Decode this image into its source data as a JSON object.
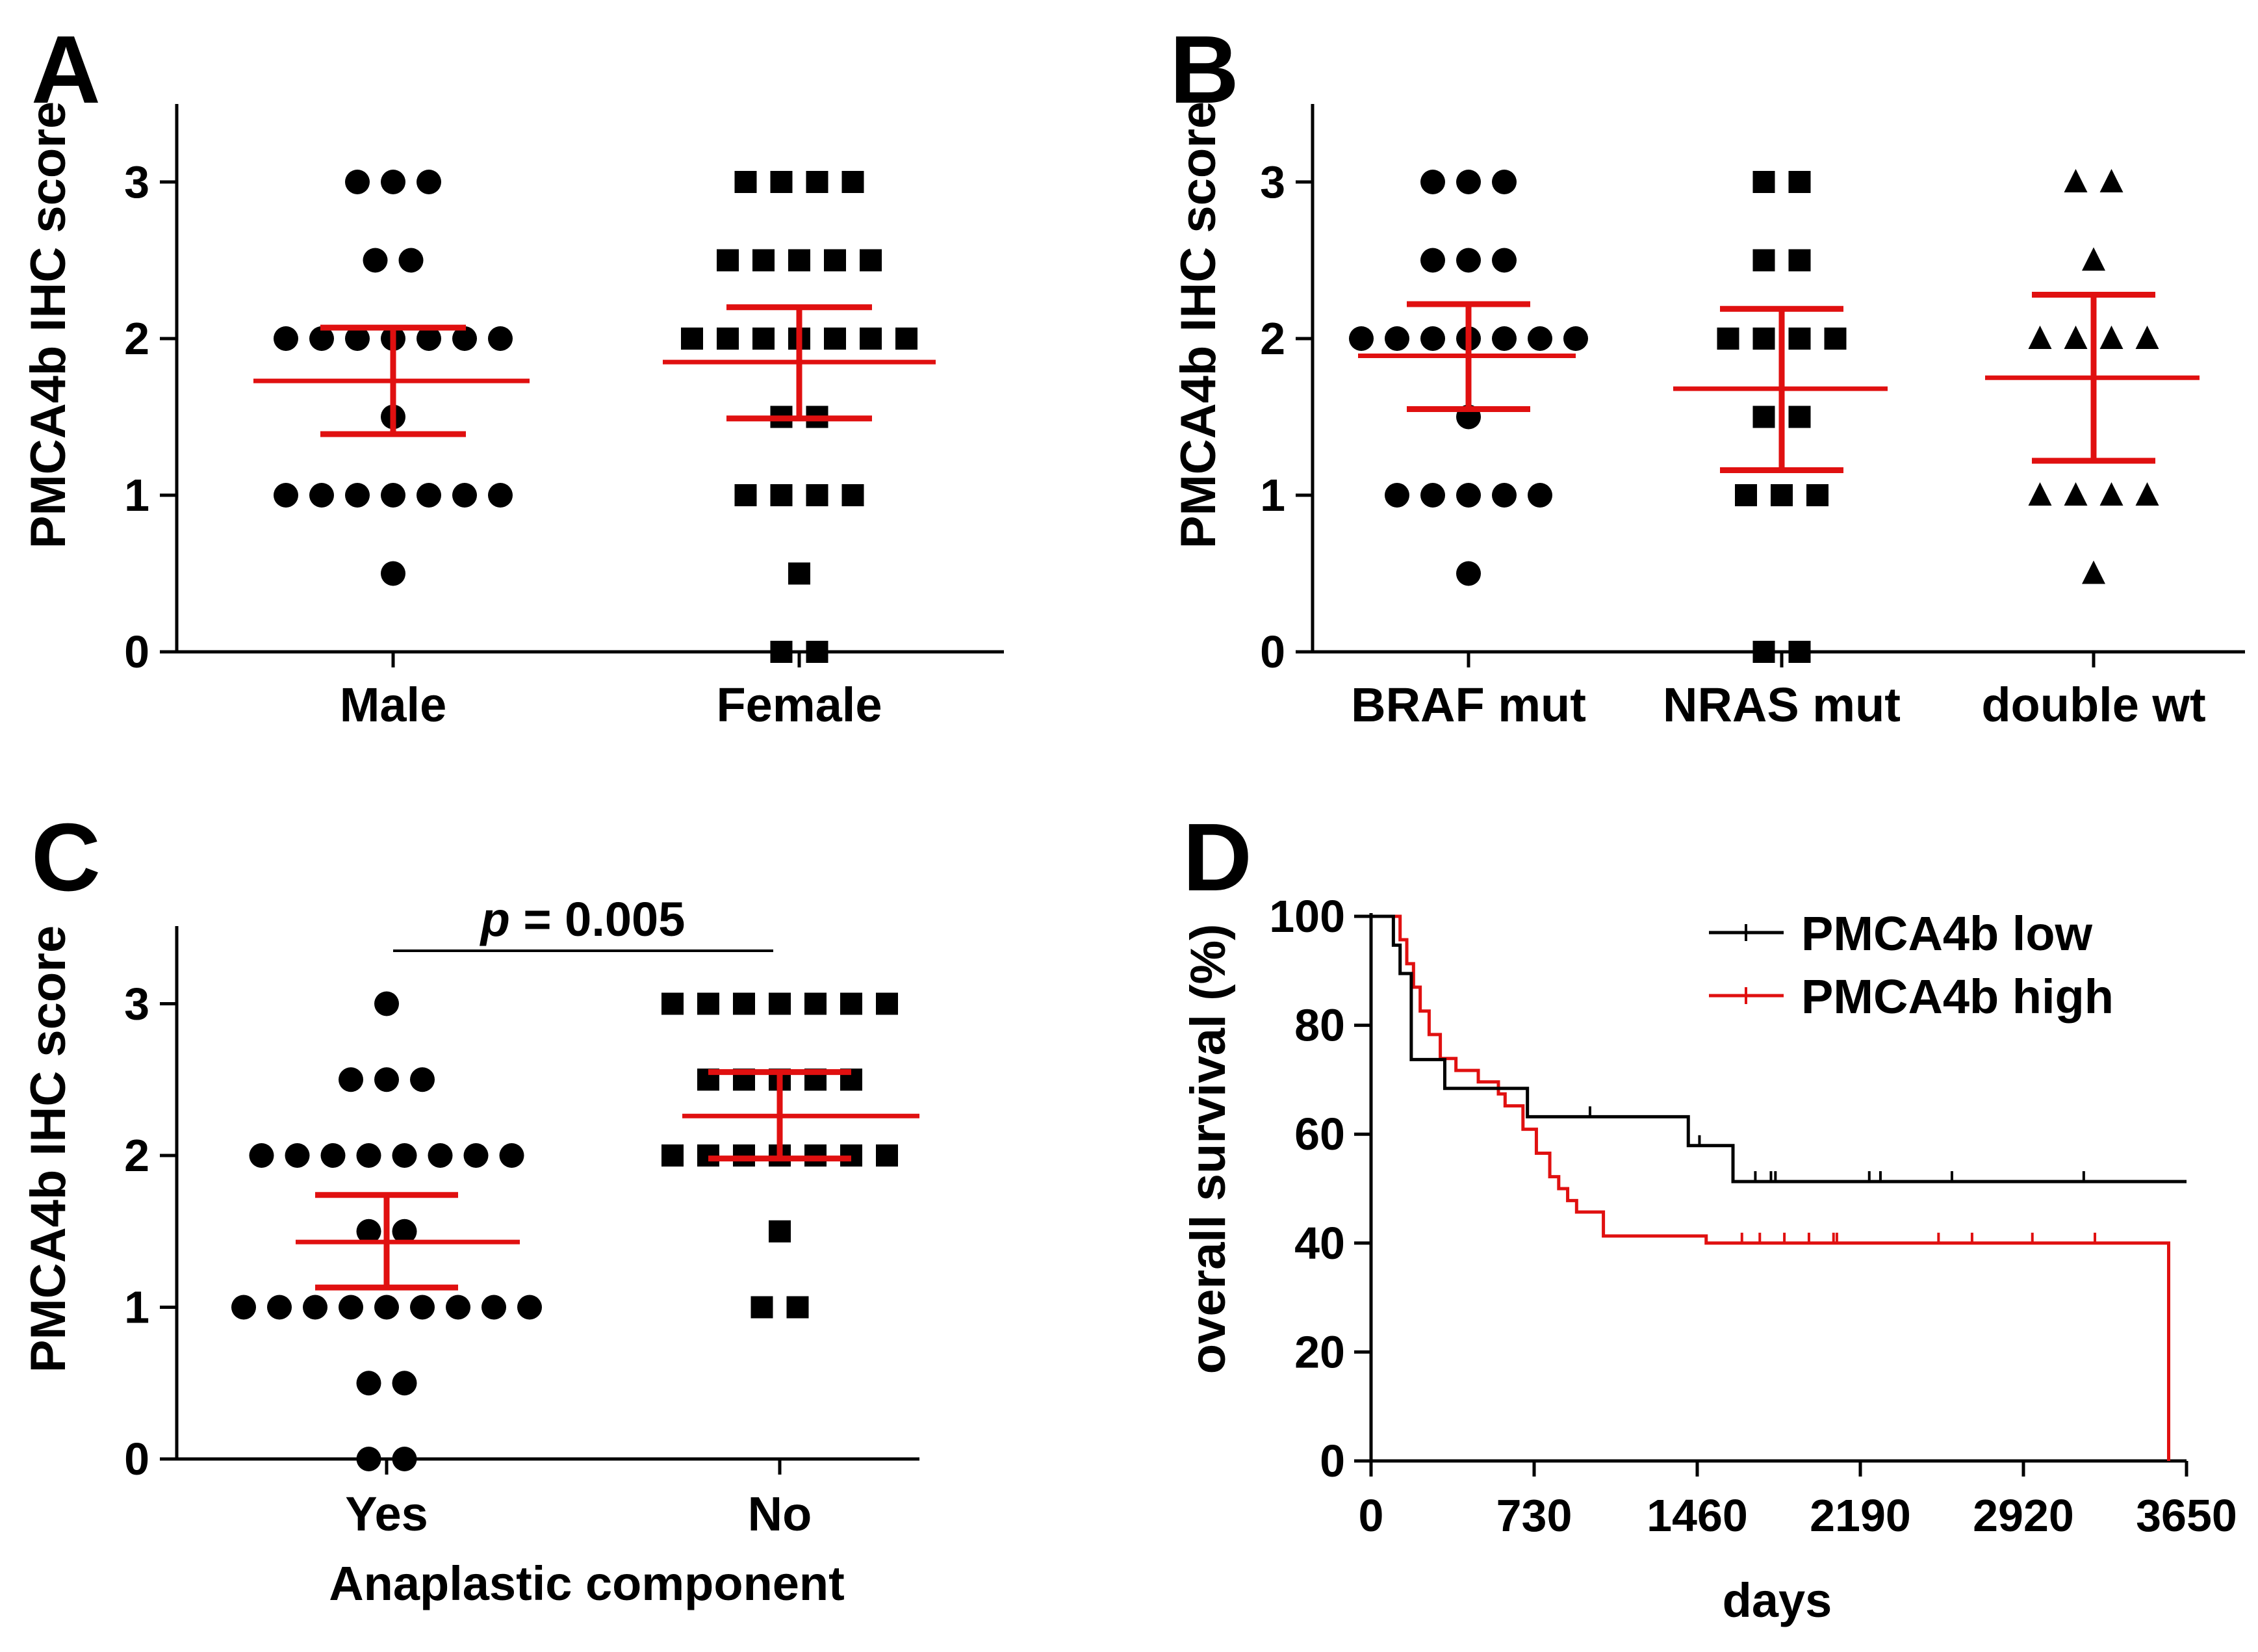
{
  "colors": {
    "points": "#000000",
    "summary": "#e01010",
    "low": "#000000",
    "high": "#e01010",
    "axis": "#000000"
  },
  "panels": {
    "A": {
      "label": "A",
      "ylabel": "PMCA4b IHC score",
      "yticks": [
        "0",
        "1",
        "2",
        "3"
      ],
      "categories": [
        "Male",
        "Female"
      ]
    },
    "B": {
      "label": "B",
      "ylabel": "PMCA4b IHC score",
      "yticks": [
        "0",
        "1",
        "2",
        "3"
      ],
      "categories": [
        "BRAF mut",
        "NRAS mut",
        "double wt"
      ]
    },
    "C": {
      "label": "C",
      "ylabel": "PMCA4b IHC score",
      "yticks": [
        "0",
        "1",
        "2",
        "3"
      ],
      "categories": [
        "Yes",
        "No"
      ],
      "xlabel": "Anaplastic component",
      "p_italic": "p",
      "p_rest": " = 0.005"
    },
    "D": {
      "label": "D",
      "ylabel": "overall survival (%)",
      "xlabel": "days",
      "yticks": [
        "0",
        "20",
        "40",
        "60",
        "80",
        "100"
      ],
      "xticks": [
        "0",
        "730",
        "1460",
        "2190",
        "2920",
        "3650"
      ],
      "legend": [
        "PMCA4b low",
        "PMCA4b high"
      ]
    }
  },
  "chart_data": [
    {
      "panel": "A",
      "type": "scatter",
      "subtype": "dot-plot with mean ± SEM",
      "ylabel": "PMCA4b IHC score",
      "ylim": [
        0,
        3.5
      ],
      "categories": [
        "Male",
        "Female"
      ],
      "groups": [
        {
          "name": "Male",
          "marker": "circle",
          "counts": {
            "3": 3,
            "2.5": 2,
            "2": 7,
            "1.5": 1,
            "1": 7,
            "0.5": 1
          },
          "mean": 1.73,
          "sem_low": 1.39,
          "sem_high": 2.07
        },
        {
          "name": "Female",
          "marker": "square",
          "counts": {
            "3": 4,
            "2.5": 5,
            "2": 7,
            "1.5": 2,
            "1": 4,
            "0.5": 1,
            "0": 2
          },
          "mean": 1.85,
          "sem_low": 1.49,
          "sem_high": 2.2
        }
      ]
    },
    {
      "panel": "B",
      "type": "scatter",
      "subtype": "dot-plot with mean ± SEM",
      "ylabel": "PMCA4b IHC score",
      "ylim": [
        0,
        3.5
      ],
      "categories": [
        "BRAF mut",
        "NRAS mut",
        "double wt"
      ],
      "groups": [
        {
          "name": "BRAF mut",
          "marker": "circle",
          "counts": {
            "3": 3,
            "2.5": 3,
            "2": 7,
            "1.5": 1,
            "1": 5,
            "0.5": 1
          },
          "mean": 1.89,
          "sem_low": 1.55,
          "sem_high": 2.22
        },
        {
          "name": "NRAS mut",
          "marker": "square",
          "counts": {
            "3": 2,
            "2.5": 2,
            "2": 4,
            "1.5": 2,
            "1": 3,
            "0": 2
          },
          "mean": 1.68,
          "sem_low": 1.16,
          "sem_high": 2.19
        },
        {
          "name": "double wt",
          "marker": "triangle",
          "counts": {
            "3": 2,
            "2.5": 1,
            "2": 4,
            "1": 4,
            "0.5": 1
          },
          "mean": 1.75,
          "sem_low": 1.22,
          "sem_high": 2.28
        }
      ]
    },
    {
      "panel": "C",
      "type": "scatter",
      "subtype": "dot-plot with mean ± SEM",
      "ylabel": "PMCA4b IHC score",
      "xlabel": "Anaplastic component",
      "ylim": [
        0,
        3.5
      ],
      "categories": [
        "Yes",
        "No"
      ],
      "annotation": "p = 0.005",
      "groups": [
        {
          "name": "Yes",
          "marker": "circle",
          "counts": {
            "3": 1,
            "2.5": 3,
            "2": 8,
            "1.5": 2,
            "1": 9,
            "0.5": 2,
            "0": 2
          },
          "mean": 1.43,
          "sem_low": 1.13,
          "sem_high": 1.74
        },
        {
          "name": "No",
          "marker": "square",
          "counts": {
            "3": 7,
            "2.5": 5,
            "2": 7,
            "1.5": 1,
            "1": 2
          },
          "mean": 2.26,
          "sem_low": 1.98,
          "sem_high": 2.55
        }
      ]
    },
    {
      "panel": "D",
      "type": "line",
      "subtype": "Kaplan-Meier survival",
      "xlabel": "days",
      "ylabel": "overall survival (%)",
      "xlim": [
        0,
        3650
      ],
      "ylim": [
        0,
        100
      ],
      "series": [
        {
          "name": "PMCA4b low",
          "color": "#000000",
          "steps": [
            [
              0,
              100
            ],
            [
              100,
              94.7
            ],
            [
              130,
              89.5
            ],
            [
              180,
              73.7
            ],
            [
              330,
              68.4
            ],
            [
              700,
              63.2
            ],
            [
              1420,
              57.9
            ],
            [
              1620,
              51.3
            ],
            [
              3650,
              51.3
            ]
          ],
          "censored": [
            [
              980,
              63.2
            ],
            [
              1470,
              57.9
            ],
            [
              1720,
              51.3
            ],
            [
              1790,
              51.3
            ],
            [
              1810,
              51.3
            ],
            [
              2230,
              51.3
            ],
            [
              2280,
              51.3
            ],
            [
              2600,
              51.3
            ],
            [
              3190,
              51.3
            ]
          ]
        },
        {
          "name": "PMCA4b high",
          "color": "#e01010",
          "steps": [
            [
              0,
              100
            ],
            [
              130,
              95.7
            ],
            [
              160,
              91.3
            ],
            [
              190,
              87
            ],
            [
              220,
              82.6
            ],
            [
              260,
              78.3
            ],
            [
              310,
              73.9
            ],
            [
              380,
              71.7
            ],
            [
              480,
              69.6
            ],
            [
              570,
              67.4
            ],
            [
              600,
              65.2
            ],
            [
              680,
              60.9
            ],
            [
              740,
              56.5
            ],
            [
              800,
              52.2
            ],
            [
              840,
              50
            ],
            [
              880,
              47.8
            ],
            [
              920,
              45.7
            ],
            [
              1040,
              41.3
            ],
            [
              1500,
              40
            ],
            [
              3570,
              40
            ],
            [
              3570,
              0
            ]
          ],
          "censored": [
            [
              1660,
              40
            ],
            [
              1740,
              40
            ],
            [
              1850,
              40
            ],
            [
              1960,
              40
            ],
            [
              2070,
              40
            ],
            [
              2085,
              40
            ],
            [
              2540,
              40
            ],
            [
              2690,
              40
            ],
            [
              2960,
              40
            ],
            [
              3240,
              40
            ]
          ]
        }
      ]
    }
  ]
}
